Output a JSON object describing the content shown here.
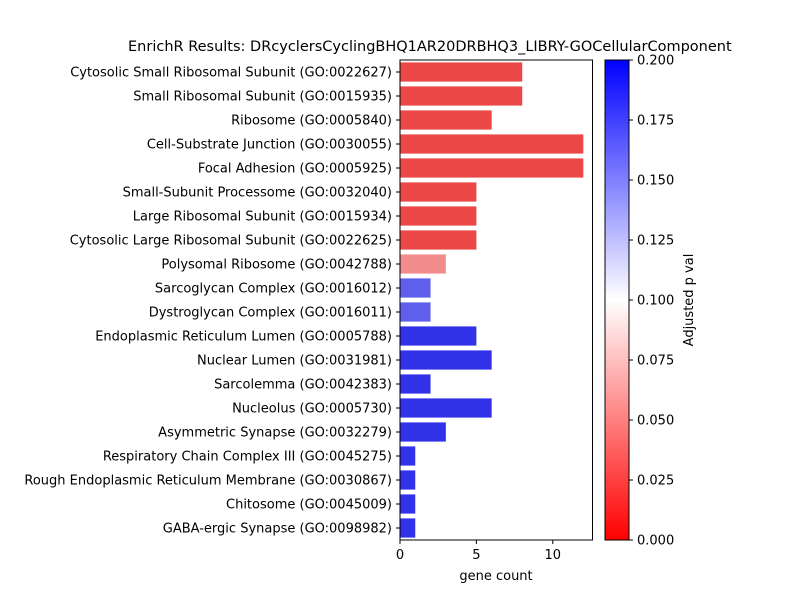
{
  "chart_data": {
    "type": "bar",
    "orientation": "horizontal",
    "title": "EnrichR Results: DRcyclersCyclingBHQ1AR20DRBHQ3_LIBRY-GOCellularComponent",
    "xlabel": "gene count",
    "ylabel": "",
    "xlim": [
      0,
      12.6
    ],
    "xticks": [
      0,
      5,
      10
    ],
    "grid": false,
    "categories": [
      "Cytosolic Small Ribosomal Subunit (GO:0022627)",
      "Small Ribosomal Subunit (GO:0015935)",
      "Ribosome (GO:0005840)",
      "Cell-Substrate Junction (GO:0030055)",
      "Focal Adhesion (GO:0005925)",
      "Small-Subunit Processome (GO:0032040)",
      "Large Ribosomal Subunit (GO:0015934)",
      "Cytosolic Large Ribosomal Subunit (GO:0022625)",
      "Polysomal Ribosome (GO:0042788)",
      "Sarcoglycan Complex (GO:0016012)",
      "Dystroglycan Complex (GO:0016011)",
      "Endoplasmic Reticulum Lumen (GO:0005788)",
      "Nuclear Lumen (GO:0031981)",
      "Sarcolemma (GO:0042383)",
      "Nucleolus (GO:0005730)",
      "Asymmetric Synapse (GO:0032279)",
      "Respiratory Chain Complex III (GO:0045275)",
      "Rough Endoplasmic Reticulum Membrane (GO:0030867)",
      "Chitosome (GO:0045009)",
      "GABA-ergic Synapse (GO:0098982)"
    ],
    "values": [
      8,
      8,
      6,
      12,
      12,
      5,
      5,
      5,
      3,
      2,
      2,
      5,
      6,
      2,
      6,
      3,
      1,
      1,
      1,
      1
    ],
    "adjusted_p": [
      0.02,
      0.02,
      0.02,
      0.02,
      0.02,
      0.02,
      0.02,
      0.02,
      0.05,
      0.17,
      0.17,
      0.19,
      0.19,
      0.19,
      0.19,
      0.19,
      0.19,
      0.19,
      0.19,
      0.19
    ],
    "colorbar": {
      "label": "Adjusted p val",
      "range": [
        0,
        0.2
      ],
      "ticks": [
        "0.000",
        "0.025",
        "0.050",
        "0.075",
        "0.100",
        "0.125",
        "0.150",
        "0.175",
        "0.200"
      ],
      "colormap": [
        "#ff0000",
        "#ffffff",
        "#0000ff"
      ]
    }
  }
}
